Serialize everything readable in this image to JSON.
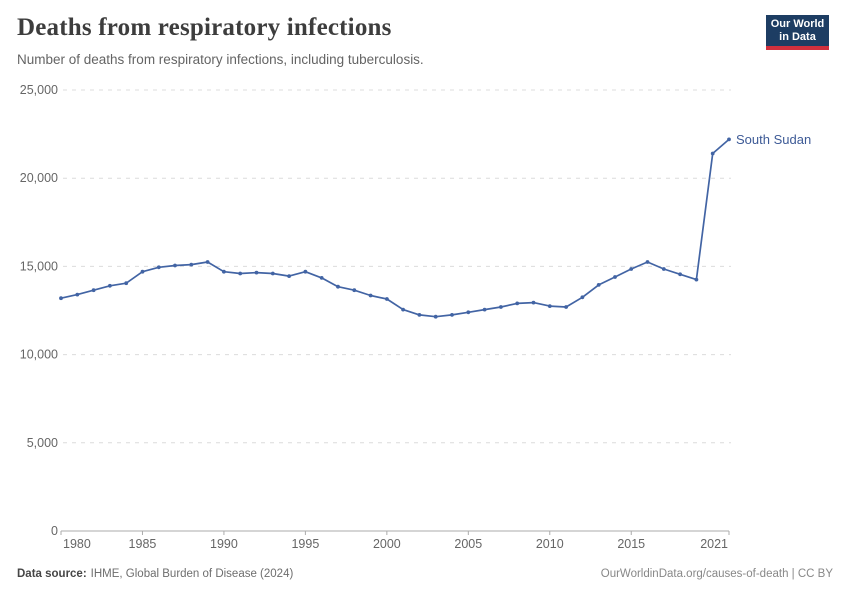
{
  "header": {
    "title": "Deaths from respiratory infections",
    "subtitle": "Number of deaths from respiratory infections, including tuberculosis."
  },
  "logo": {
    "line1": "Our World",
    "line2": "in Data",
    "bg_color": "#1d3d63",
    "accent_color": "#d1303d"
  },
  "footer": {
    "source_label": "Data source:",
    "source_value": "IHME, Global Burden of Disease (2024)",
    "credit": "OurWorldinData.org/causes-of-death | CC BY"
  },
  "colors": {
    "line": "#4264a4",
    "entity_label": "#3d5a96",
    "grid": "#dcdcdc",
    "axis": "#ababab",
    "tick_label": "#666666"
  },
  "chart_data": {
    "type": "line",
    "title": "Deaths from respiratory infections",
    "subtitle": "Number of deaths from respiratory infections, including tuberculosis.",
    "entity": "South Sudan",
    "grid": "horizontal-dashed",
    "legend_position": "end-of-line-label",
    "ylim": [
      0,
      25000
    ],
    "yticks": [
      0,
      5000,
      10000,
      15000,
      20000,
      25000
    ],
    "ytick_labels": [
      "0",
      "5,000",
      "10,000",
      "15,000",
      "20,000",
      "25,000"
    ],
    "xticks": [
      1980,
      1985,
      1990,
      1995,
      2000,
      2005,
      2010,
      2015,
      2021
    ],
    "xlabel": "",
    "ylabel": "",
    "x": [
      1980,
      1981,
      1982,
      1983,
      1984,
      1985,
      1986,
      1987,
      1988,
      1989,
      1990,
      1991,
      1992,
      1993,
      1994,
      1995,
      1996,
      1997,
      1998,
      1999,
      2000,
      2001,
      2002,
      2003,
      2004,
      2005,
      2006,
      2007,
      2008,
      2009,
      2010,
      2011,
      2012,
      2013,
      2014,
      2015,
      2016,
      2017,
      2018,
      2019,
      2020,
      2021
    ],
    "series": [
      {
        "name": "South Sudan",
        "values": [
          13200,
          13400,
          13650,
          13900,
          14050,
          14700,
          14950,
          15050,
          15100,
          15250,
          14700,
          14600,
          14650,
          14600,
          14450,
          14700,
          14350,
          13850,
          13650,
          13350,
          13150,
          12550,
          12250,
          12150,
          12250,
          12400,
          12550,
          12700,
          12900,
          12950,
          12750,
          12700,
          13250,
          13950,
          14400,
          14850,
          15250,
          14850,
          14550,
          14250,
          21400,
          22200
        ]
      }
    ]
  }
}
